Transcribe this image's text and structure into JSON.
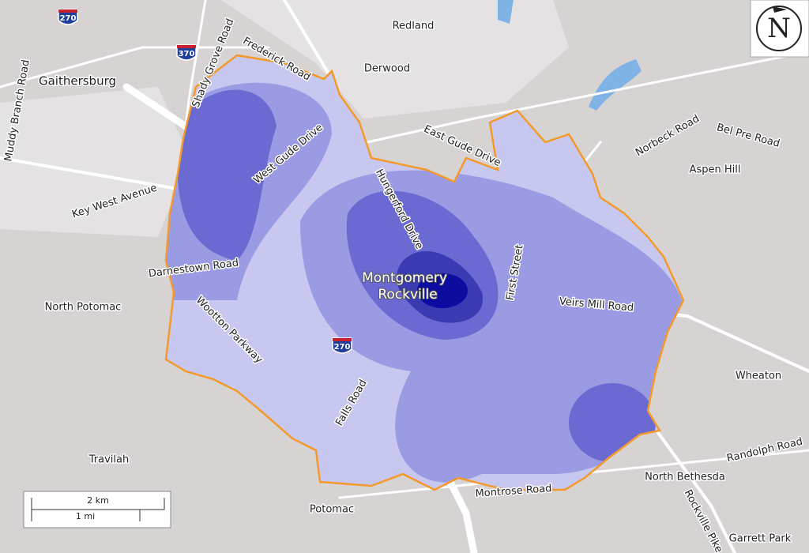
{
  "places": [
    "Redland",
    "Derwood",
    "Gaithersburg",
    "Aspen Hill",
    "North Potomac",
    "Wheaton",
    "Travilah",
    "North Bethesda",
    "Potomac",
    "Garrett Park"
  ],
  "city": [
    "Montgomery",
    "Rockville"
  ],
  "roads": [
    "Shady Grove Road",
    "Frederick Road",
    "Muddy Branch Road",
    "West Gude Drive",
    "East Gude Drive",
    "Hungerford Drive",
    "Key West Avenue",
    "Norbeck Road",
    "Bel Pre Road",
    "Darnestown Road",
    "Wootton Parkway",
    "First Street",
    "Veirs Mill Road",
    "Falls Road",
    "Randolph Road",
    "Montrose Road",
    "Rockville Pike"
  ],
  "shields": [
    "270",
    "370",
    "270"
  ],
  "scale": {
    "metric": "2 km",
    "imperial": "1 mi"
  },
  "compass": "N"
}
